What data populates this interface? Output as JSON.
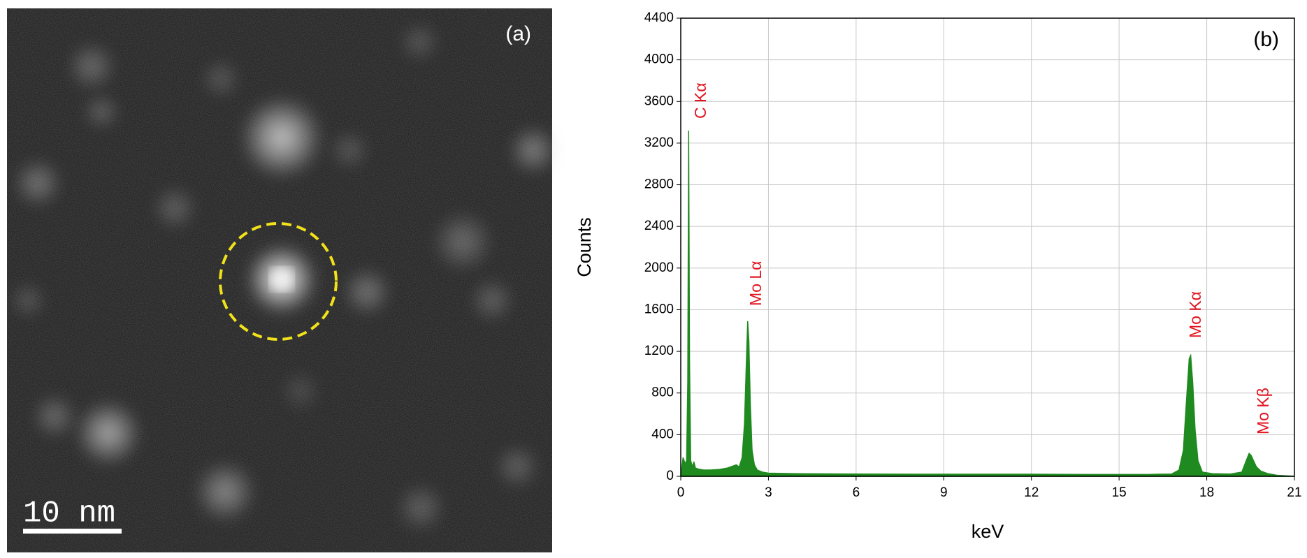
{
  "image": {
    "panel_label": "(a)",
    "scale_bar": "10 nm"
  },
  "chart_data": {
    "type": "area",
    "panel_label": "(b)",
    "x_label": "keV",
    "y_label": "Counts",
    "color": "#1f8a1f",
    "grid": true,
    "xlim": [
      0,
      21
    ],
    "xticks": [
      0,
      3,
      6,
      9,
      12,
      15,
      18,
      21
    ],
    "ylim": [
      0,
      4400
    ],
    "yticks": [
      0,
      400,
      800,
      1200,
      1600,
      2000,
      2400,
      2800,
      3200,
      3600,
      4000,
      4400
    ],
    "x": [
      0,
      0.08,
      0.15,
      0.2,
      0.24,
      0.27,
      0.3,
      0.34,
      0.4,
      0.45,
      0.5,
      0.6,
      0.8,
      1.0,
      1.3,
      1.6,
      1.8,
      1.9,
      2.0,
      2.1,
      2.18,
      2.24,
      2.29,
      2.33,
      2.38,
      2.44,
      2.52,
      2.62,
      2.8,
      3.0,
      4.0,
      6.0,
      8.0,
      10.0,
      12.0,
      14.0,
      16.0,
      16.8,
      17.05,
      17.2,
      17.3,
      17.4,
      17.45,
      17.52,
      17.6,
      17.7,
      17.85,
      18.2,
      18.8,
      19.2,
      19.35,
      19.45,
      19.52,
      19.6,
      19.7,
      19.85,
      20.1,
      20.4,
      21.0
    ],
    "values": [
      0,
      180,
      120,
      150,
      900,
      3320,
      1100,
      150,
      90,
      140,
      80,
      70,
      60,
      60,
      65,
      80,
      100,
      110,
      90,
      180,
      500,
      1050,
      1490,
      1300,
      700,
      250,
      110,
      60,
      40,
      30,
      25,
      22,
      20,
      20,
      20,
      18,
      18,
      22,
      60,
      250,
      700,
      1130,
      1160,
      900,
      450,
      150,
      40,
      25,
      22,
      40,
      150,
      220,
      200,
      150,
      90,
      50,
      25,
      10,
      0
    ],
    "annotations": [
      "C Kα",
      "Mo Lα",
      "Mo Kα",
      "Mo Kβ"
    ]
  }
}
